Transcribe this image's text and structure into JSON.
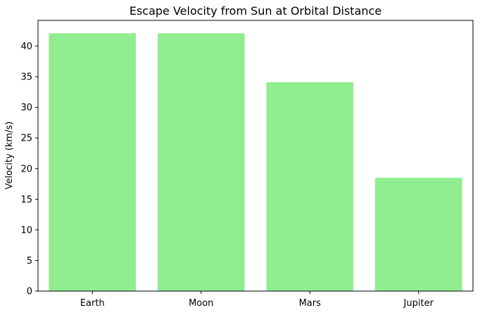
{
  "chart_data": {
    "type": "bar",
    "title": "Escape Velocity from Sun at Orbital Distance",
    "xlabel": "",
    "ylabel": "Velocity (km/s)",
    "categories": [
      "Earth",
      "Moon",
      "Mars",
      "Jupiter"
    ],
    "values": [
      42.1,
      42.1,
      34.1,
      18.5
    ],
    "ylim": [
      0,
      44.2
    ],
    "yticks": [
      0,
      5,
      10,
      15,
      20,
      25,
      30,
      35,
      40
    ],
    "bar_color": "#90ee90",
    "grid": false,
    "legend": "none"
  }
}
